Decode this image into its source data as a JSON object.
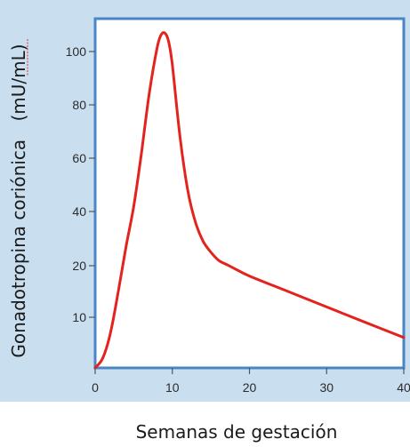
{
  "chart_data": {
    "type": "line",
    "title": "",
    "xlabel": "Semanas de gestación",
    "ylabel": "Gonadotropina coriónica",
    "ylabel_unit": "(mU/mL)",
    "xlim": [
      0,
      40
    ],
    "y_ticks": [
      10,
      20,
      40,
      60,
      80,
      100
    ],
    "x_ticks": [
      0,
      10,
      20,
      30,
      40
    ],
    "y_tick_labels": [
      "10",
      "20",
      "40",
      "60",
      "80",
      "100"
    ],
    "x_tick_labels": [
      "0",
      "10",
      "20",
      "30",
      "40"
    ],
    "grid": false,
    "legend": "none",
    "colors": {
      "line": "#e4231f",
      "frame": "#4a86c5",
      "panel_border": "#c9dff0",
      "plot_bg": "#ffffff"
    },
    "series": [
      {
        "values_x": [
          0,
          1,
          2,
          3,
          4,
          5,
          6,
          7,
          8,
          8.5,
          9,
          9.5,
          10,
          11,
          12,
          13,
          14,
          15,
          16,
          17,
          18,
          20,
          25,
          30,
          35,
          40
        ],
        "values_y": [
          0,
          2,
          7,
          15,
          27,
          42,
          62,
          84,
          101,
          106,
          107,
          104,
          95,
          68,
          48,
          36,
          29,
          25,
          22,
          20.5,
          19.5,
          18,
          15,
          12,
          9,
          6
        ]
      }
    ]
  }
}
